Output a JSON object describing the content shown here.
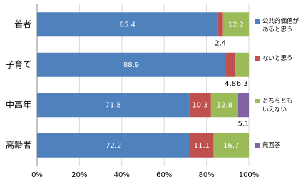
{
  "chart_data": {
    "type": "stacked-hbar",
    "categories": [
      "若者",
      "子育て",
      "中高年",
      "高齢者"
    ],
    "series": [
      {
        "name": "公共的価値があると思う",
        "color": "#4f81bd",
        "values": [
          85.4,
          88.9,
          71.8,
          72.2
        ]
      },
      {
        "name": "ないと思う",
        "color": "#c0504d",
        "values": [
          2.4,
          4.8,
          10.3,
          11.1
        ]
      },
      {
        "name": "どちらともいえない",
        "color": "#9bbb59",
        "values": [
          12.2,
          6.3,
          12.8,
          16.7
        ]
      },
      {
        "name": "無回答",
        "color": "#8064a2",
        "values": [
          null,
          null,
          5.1,
          null
        ]
      }
    ],
    "xlim": [
      0,
      100
    ],
    "xticks": [
      {
        "value": 0,
        "label": "0%"
      },
      {
        "value": 20,
        "label": "20%"
      },
      {
        "value": 40,
        "label": "40%"
      },
      {
        "value": 60,
        "label": "60%"
      },
      {
        "value": 80,
        "label": "80%"
      },
      {
        "value": 100,
        "label": "100%"
      }
    ],
    "grid": true
  }
}
